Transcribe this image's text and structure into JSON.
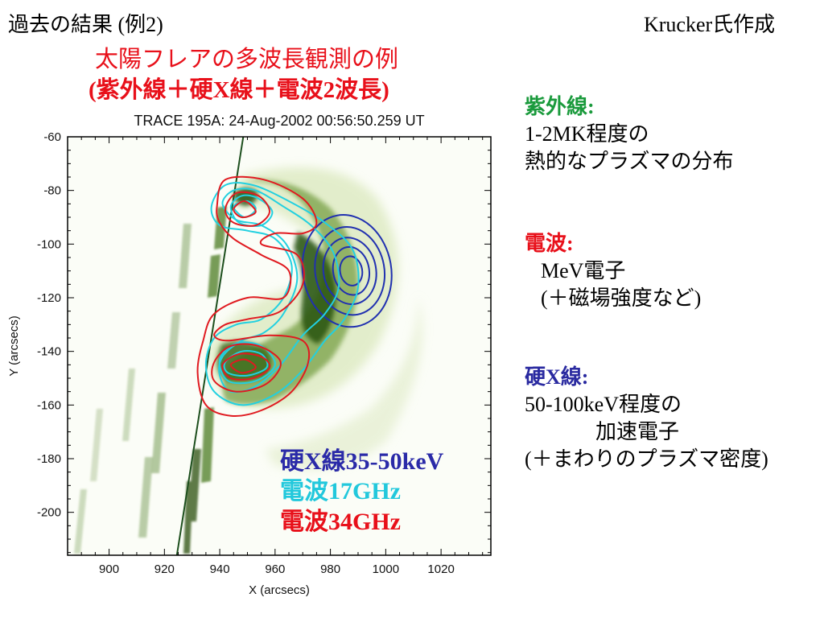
{
  "header": {
    "title": "過去の結果 (例2)",
    "credit": "Krucker氏作成",
    "subtitle_line1": "太陽フレアの多波長観測の例",
    "subtitle_line2": "(紫外線＋硬X線＋電波2波長)"
  },
  "notes": {
    "uv": {
      "head": "紫外線:",
      "lines": [
        "1-2MK程度の",
        "熱的なプラズマの分布"
      ],
      "color": "#1a9a3c"
    },
    "radio": {
      "head": "電波:",
      "lines": [
        "MeV電子",
        "(＋磁場強度など)"
      ],
      "color": "#e8101a"
    },
    "hxr": {
      "head": "硬X線:",
      "lines": [
        "50-100keV程度の",
        "加速電子",
        "(＋まわりのプラズマ密度)"
      ],
      "color": "#2a2aa0"
    }
  },
  "chart_data": {
    "type": "contour",
    "title": "TRACE 195A:  24-Aug-2002 00:56:50.259 UT",
    "xlabel": "X (arcsecs)",
    "ylabel": "Y (arcsecs)",
    "xlim": [
      885,
      1038
    ],
    "ylim": [
      -216,
      -60
    ],
    "xticks": [
      900,
      920,
      940,
      960,
      980,
      1000,
      1020
    ],
    "yticks": [
      -60,
      -80,
      -100,
      -120,
      -140,
      -160,
      -180,
      -200
    ],
    "background": "TRACE 195A image (green-scale)",
    "limb_line": {
      "x": [
        948.5,
        924.5
      ],
      "y": [
        -60,
        -216
      ]
    },
    "legend": [
      {
        "label": "硬X線35-50keV",
        "color": "#2a2aa8"
      },
      {
        "label": "電波17GHz",
        "color": "#22c8dc"
      },
      {
        "label": "電波34GHz",
        "color": "#e8101a"
      }
    ],
    "series": [
      {
        "name": "硬X線35-50keV",
        "color": "#2030b0",
        "contours": [
          {
            "cx": 986,
            "cy": -110,
            "rx": 16,
            "ry": 21,
            "rot": -10
          },
          {
            "cx": 987,
            "cy": -110,
            "rx": 12.5,
            "ry": 16.5,
            "rot": -10
          },
          {
            "cx": 987,
            "cy": -110,
            "rx": 9.5,
            "ry": 12.5,
            "rot": -10
          },
          {
            "cx": 987.5,
            "cy": -110,
            "rx": 6.5,
            "ry": 9,
            "rot": -10
          },
          {
            "cx": 987.5,
            "cy": -110,
            "rx": 4,
            "ry": 5.5,
            "rot": -10
          }
        ]
      },
      {
        "name": "電波17GHz",
        "color": "#22d0e0",
        "contours": [
          {
            "points": [
              [
                937,
                -86
              ],
              [
                942,
                -78
              ],
              [
                952,
                -78
              ],
              [
                965,
                -84
              ],
              [
                978,
                -92
              ],
              [
                988,
                -102
              ],
              [
                990,
                -116
              ],
              [
                985,
                -128
              ],
              [
                978,
                -136
              ],
              [
                970,
                -147
              ],
              [
                960,
                -156
              ],
              [
                948,
                -160
              ],
              [
                938,
                -155
              ],
              [
                935,
                -145
              ],
              [
                938,
                -135
              ],
              [
                946,
                -130
              ],
              [
                955,
                -128
              ],
              [
                963,
                -120
              ],
              [
                966,
                -108
              ],
              [
                960,
                -98
              ],
              [
                950,
                -95
              ],
              [
                940,
                -93
              ]
            ]
          },
          {
            "points": [
              [
                941,
                -85
              ],
              [
                945,
                -80
              ],
              [
                953,
                -80
              ],
              [
                963,
                -86
              ],
              [
                973,
                -93
              ],
              [
                981,
                -103
              ],
              [
                983,
                -116
              ],
              [
                978,
                -126
              ],
              [
                970,
                -134
              ],
              [
                962,
                -145
              ],
              [
                953,
                -153
              ],
              [
                944,
                -155
              ],
              [
                940,
                -149
              ],
              [
                941,
                -142
              ],
              [
                948,
                -136
              ],
              [
                956,
                -133
              ],
              [
                963,
                -126
              ],
              [
                968,
                -113
              ],
              [
                964,
                -100
              ],
              [
                955,
                -93
              ],
              [
                946,
                -91
              ]
            ]
          },
          {
            "points": [
              [
                944,
                -86
              ],
              [
                948,
                -82
              ],
              [
                954,
                -83
              ],
              [
                959,
                -88
              ],
              [
                955,
                -93
              ],
              [
                947,
                -92
              ]
            ]
          },
          {
            "points": [
              [
                945,
                -86
              ],
              [
                950,
                -84
              ],
              [
                953,
                -87
              ],
              [
                949,
                -90
              ]
            ]
          },
          {
            "points": [
              [
                940,
                -143
              ],
              [
                946,
                -137
              ],
              [
                955,
                -138
              ],
              [
                960,
                -145
              ],
              [
                953,
                -151
              ],
              [
                943,
                -151
              ]
            ]
          },
          {
            "points": [
              [
                942,
                -144
              ],
              [
                948,
                -140
              ],
              [
                955,
                -141
              ],
              [
                957,
                -146
              ],
              [
                950,
                -149
              ],
              [
                943,
                -148
              ]
            ]
          }
        ]
      },
      {
        "name": "電波34GHz",
        "color": "#e01a20",
        "contours": [
          {
            "points": [
              [
                939,
                -86
              ],
              [
                942,
                -76
              ],
              [
                956,
                -76
              ],
              [
                970,
                -83
              ],
              [
                975,
                -92
              ],
              [
                970,
                -96
              ],
              [
                960,
                -96
              ],
              [
                955,
                -100
              ],
              [
                968,
                -104
              ],
              [
                970,
                -115
              ],
              [
                962,
                -125
              ],
              [
                950,
                -128
              ],
              [
                942,
                -130
              ],
              [
                938,
                -134
              ],
              [
                943,
                -136
              ],
              [
                958,
                -134
              ],
              [
                970,
                -136
              ],
              [
                972,
                -144
              ],
              [
                966,
                -155
              ],
              [
                955,
                -162
              ],
              [
                944,
                -164
              ],
              [
                935,
                -160
              ],
              [
                932,
                -148
              ],
              [
                934,
                -136
              ],
              [
                938,
                -126
              ],
              [
                950,
                -120
              ],
              [
                963,
                -120
              ],
              [
                965,
                -110
              ],
              [
                955,
                -104
              ],
              [
                945,
                -98
              ],
              [
                940,
                -92
              ]
            ]
          },
          {
            "points": [
              [
                942,
                -87
              ],
              [
                946,
                -81
              ],
              [
                954,
                -82
              ],
              [
                958,
                -88
              ],
              [
                953,
                -93
              ],
              [
                945,
                -92
              ]
            ]
          },
          {
            "points": [
              [
                945,
                -87
              ],
              [
                949,
                -84
              ],
              [
                953,
                -88
              ],
              [
                948,
                -90
              ]
            ]
          },
          {
            "points": [
              [
                938,
                -144
              ],
              [
                944,
                -138
              ],
              [
                954,
                -138
              ],
              [
                962,
                -144
              ],
              [
                957,
                -152
              ],
              [
                946,
                -155
              ],
              [
                938,
                -151
              ]
            ]
          },
          {
            "points": [
              [
                941,
                -145
              ],
              [
                947,
                -141
              ],
              [
                955,
                -142
              ],
              [
                958,
                -146
              ],
              [
                952,
                -150
              ],
              [
                944,
                -150
              ]
            ]
          },
          {
            "points": [
              [
                944,
                -145
              ],
              [
                949,
                -143
              ],
              [
                953,
                -146
              ],
              [
                948,
                -148
              ]
            ]
          }
        ]
      }
    ]
  }
}
